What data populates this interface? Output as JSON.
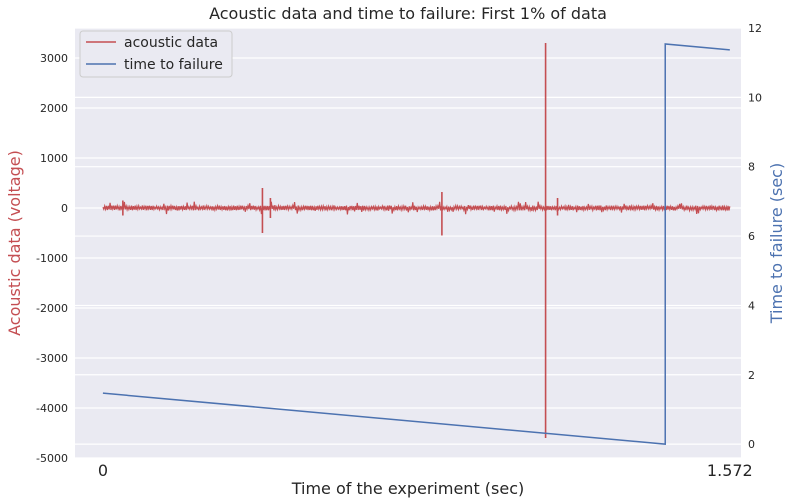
{
  "chart_data": {
    "type": "line",
    "title": "Acoustic data and time to failure: First 1% of data",
    "xlabel": "Time of the experiment (sec)",
    "ylabel_left": "Acoustic data (voltage)",
    "ylabel_right": "Time to failure (sec)",
    "x_tick_labels": [
      "0",
      "1.572"
    ],
    "xlim": [
      -0.07,
      1.6
    ],
    "ylim_left": [
      -5000,
      3600
    ],
    "ylim_right": [
      -0.4,
      12
    ],
    "y_ticks_left": [
      3000,
      2000,
      1000,
      0,
      -1000,
      -2000,
      -3000,
      -4000,
      -5000
    ],
    "y_ticks_right": [
      12,
      10,
      8,
      6,
      4,
      2,
      0
    ],
    "grid": true,
    "legend": {
      "position": "top-left",
      "entries": [
        "acoustic data",
        "time to failure"
      ]
    },
    "colors": {
      "acoustic": "#c44e52",
      "ttf": "#4c72b0",
      "background": "#eaeaf2"
    },
    "series": [
      {
        "name": "acoustic data",
        "axis": "left",
        "color": "#c44e52",
        "baseline_amplitude": 50,
        "x": [
          0.05,
          0.4,
          0.42,
          0.85,
          1.11,
          1.14
        ],
        "y_high": [
          150,
          400,
          200,
          320,
          3300,
          200
        ],
        "y_low": [
          -150,
          -500,
          -200,
          -550,
          -4600,
          -150
        ],
        "x_range": [
          0,
          1.572
        ]
      },
      {
        "name": "time to failure",
        "axis": "right",
        "color": "#4c72b0",
        "x": [
          0,
          1.41,
          1.41,
          1.572
        ],
        "y": [
          1.47,
          0.0,
          11.54,
          11.37
        ]
      }
    ]
  }
}
